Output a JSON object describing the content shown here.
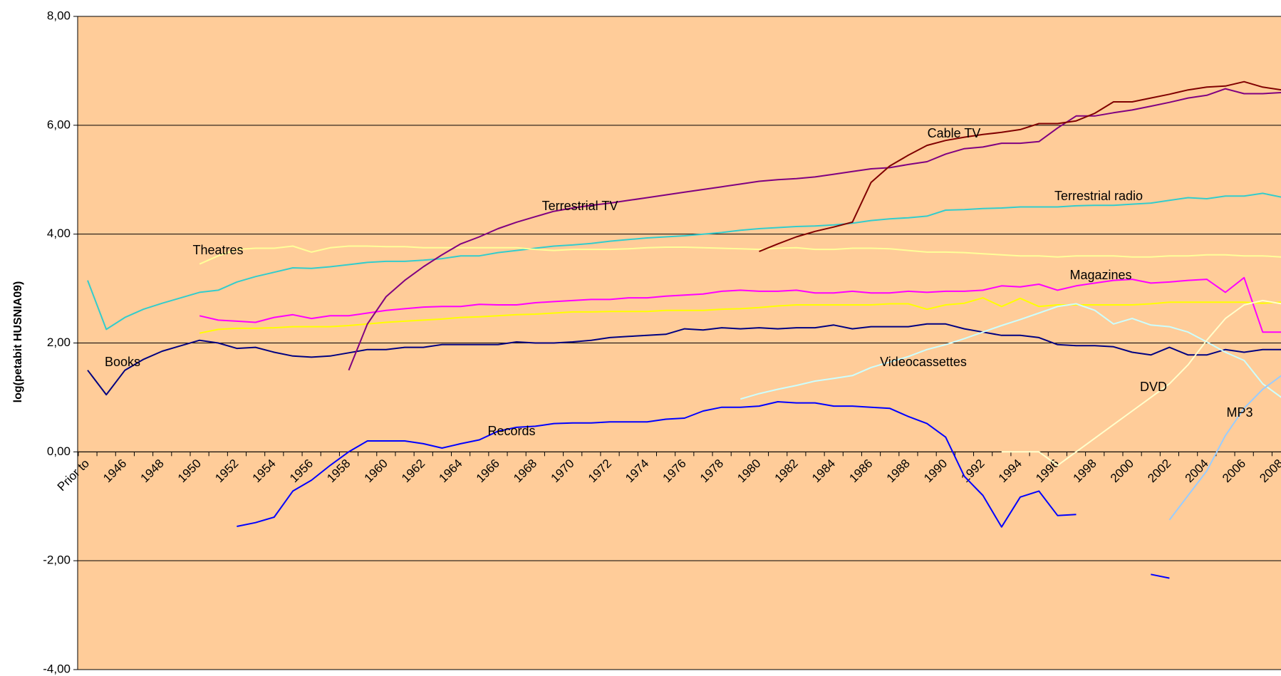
{
  "chart_data": {
    "type": "line",
    "ylabel": "log(petabit HUSNIA09)",
    "categories": [
      "Prior to",
      null,
      "1946",
      null,
      "1948",
      null,
      "1950",
      null,
      "1952",
      null,
      "1954",
      null,
      "1956",
      null,
      "1958",
      null,
      "1960",
      null,
      "1962",
      null,
      "1964",
      null,
      "1966",
      null,
      "1968",
      null,
      "1970",
      null,
      "1972",
      null,
      "1974",
      null,
      "1976",
      null,
      "1978",
      null,
      "1980",
      null,
      "1982",
      null,
      "1984",
      null,
      "1986",
      null,
      "1988",
      null,
      "1990",
      null,
      "1992",
      null,
      "1994",
      null,
      "1996",
      null,
      "1998",
      null,
      "2000",
      null,
      "2002",
      null,
      "2004",
      null,
      "2006",
      null,
      "2008"
    ],
    "ylim": [
      -4,
      8
    ],
    "yticks": [
      {
        "value": -4,
        "label": "-4,00"
      },
      {
        "value": -2,
        "label": "-2,00"
      },
      {
        "value": 0,
        "label": "0,00"
      },
      {
        "value": 2,
        "label": "2,00"
      },
      {
        "value": 4,
        "label": "4,00"
      },
      {
        "value": 6,
        "label": "6,00"
      },
      {
        "value": 8,
        "label": "8,00"
      }
    ],
    "grid": true,
    "background": "#ffcc99",
    "series": [
      {
        "name": "Books",
        "color": "#000080",
        "values": [
          1.5,
          1.05,
          1.5,
          1.7,
          1.85,
          1.95,
          2.05,
          2.0,
          1.9,
          1.92,
          1.83,
          1.76,
          1.74,
          1.76,
          1.82,
          1.88,
          1.88,
          1.92,
          1.92,
          1.97,
          1.97,
          1.97,
          1.97,
          2.02,
          2.0,
          2.0,
          2.02,
          2.05,
          2.1,
          2.12,
          2.14,
          2.16,
          2.26,
          2.24,
          2.28,
          2.26,
          2.28,
          2.26,
          2.28,
          2.28,
          2.33,
          2.26,
          2.3,
          2.3,
          2.3,
          2.35,
          2.35,
          2.26,
          2.2,
          2.14,
          2.14,
          2.1,
          1.97,
          1.95,
          1.95,
          1.93,
          1.83,
          1.78,
          1.92,
          1.78,
          1.78,
          1.88,
          1.83,
          1.88,
          1.88
        ]
      },
      {
        "name": "Terrestrial radio",
        "color": "#33cccc",
        "values": [
          3.15,
          2.25,
          2.47,
          2.62,
          2.73,
          2.83,
          2.93,
          2.97,
          3.12,
          3.22,
          3.3,
          3.38,
          3.37,
          3.4,
          3.44,
          3.48,
          3.5,
          3.5,
          3.52,
          3.55,
          3.6,
          3.6,
          3.66,
          3.7,
          3.74,
          3.78,
          3.8,
          3.83,
          3.87,
          3.9,
          3.93,
          3.95,
          3.97,
          4.0,
          4.03,
          4.07,
          4.1,
          4.12,
          4.14,
          4.15,
          4.17,
          4.2,
          4.25,
          4.28,
          4.3,
          4.33,
          4.44,
          4.45,
          4.47,
          4.48,
          4.5,
          4.5,
          4.5,
          4.52,
          4.53,
          4.53,
          4.55,
          4.57,
          4.62,
          4.67,
          4.65,
          4.7,
          4.7,
          4.75,
          4.68
        ]
      },
      {
        "name": "Theatres",
        "color": "#ffff99",
        "values": [
          null,
          null,
          null,
          null,
          null,
          null,
          3.45,
          3.6,
          3.72,
          3.74,
          3.74,
          3.78,
          3.67,
          3.75,
          3.78,
          3.78,
          3.77,
          3.77,
          3.75,
          3.75,
          3.75,
          3.75,
          3.75,
          3.75,
          3.72,
          3.7,
          3.72,
          3.72,
          3.72,
          3.73,
          3.75,
          3.76,
          3.76,
          3.75,
          3.74,
          3.73,
          3.72,
          3.74,
          3.75,
          3.72,
          3.72,
          3.74,
          3.74,
          3.73,
          3.7,
          3.67,
          3.67,
          3.66,
          3.64,
          3.62,
          3.6,
          3.6,
          3.58,
          3.6,
          3.6,
          3.6,
          3.58,
          3.58,
          3.6,
          3.6,
          3.62,
          3.62,
          3.6,
          3.6,
          3.58
        ]
      },
      {
        "color": "#ffff00",
        "values": [
          null,
          null,
          null,
          null,
          null,
          null,
          2.18,
          2.25,
          2.27,
          2.27,
          2.28,
          2.3,
          2.3,
          2.3,
          2.32,
          2.35,
          2.38,
          2.4,
          2.42,
          2.44,
          2.47,
          2.48,
          2.5,
          2.52,
          2.53,
          2.55,
          2.57,
          2.57,
          2.58,
          2.58,
          2.58,
          2.6,
          2.6,
          2.6,
          2.62,
          2.63,
          2.65,
          2.68,
          2.7,
          2.7,
          2.7,
          2.7,
          2.7,
          2.72,
          2.72,
          2.62,
          2.7,
          2.73,
          2.83,
          2.67,
          2.82,
          2.67,
          2.7,
          2.7,
          2.7,
          2.7,
          2.7,
          2.72,
          2.75,
          2.75,
          2.75,
          2.75,
          2.75,
          2.73,
          2.75
        ]
      },
      {
        "name": "Magazines",
        "color": "#ff00ff",
        "values": [
          null,
          null,
          null,
          null,
          null,
          null,
          2.5,
          2.42,
          2.4,
          2.38,
          2.47,
          2.52,
          2.45,
          2.5,
          2.5,
          2.55,
          2.6,
          2.63,
          2.66,
          2.67,
          2.67,
          2.71,
          2.7,
          2.7,
          2.74,
          2.76,
          2.78,
          2.8,
          2.8,
          2.83,
          2.83,
          2.86,
          2.88,
          2.9,
          2.95,
          2.97,
          2.95,
          2.95,
          2.97,
          2.92,
          2.92,
          2.95,
          2.92,
          2.92,
          2.95,
          2.93,
          2.95,
          2.95,
          2.97,
          3.05,
          3.03,
          3.08,
          2.97,
          3.05,
          3.1,
          3.15,
          3.17,
          3.1,
          3.12,
          3.15,
          3.17,
          2.93,
          3.2,
          2.2,
          2.2
        ]
      },
      {
        "name": "Terrestrial TV",
        "color": "#800080",
        "values": [
          null,
          null,
          null,
          null,
          null,
          null,
          null,
          null,
          null,
          null,
          null,
          null,
          null,
          null,
          1.5,
          2.35,
          2.85,
          3.15,
          3.4,
          3.62,
          3.82,
          3.95,
          4.1,
          4.22,
          4.32,
          4.42,
          4.48,
          4.53,
          4.57,
          4.62,
          4.67,
          4.72,
          4.77,
          4.82,
          4.87,
          4.92,
          4.97,
          5.0,
          5.02,
          5.05,
          5.1,
          5.15,
          5.2,
          5.22,
          5.28,
          5.33,
          5.47,
          5.57,
          5.6,
          5.67,
          5.67,
          5.7,
          5.95,
          6.17,
          6.17,
          6.23,
          6.28,
          6.35,
          6.42,
          6.5,
          6.55,
          6.67,
          6.58,
          6.58,
          6.6
        ]
      },
      {
        "name": "Cable TV",
        "color": "#800000",
        "values": [
          null,
          null,
          null,
          null,
          null,
          null,
          null,
          null,
          null,
          null,
          null,
          null,
          null,
          null,
          null,
          null,
          null,
          null,
          null,
          null,
          null,
          null,
          null,
          null,
          null,
          null,
          null,
          null,
          null,
          null,
          null,
          null,
          null,
          null,
          null,
          null,
          3.68,
          3.82,
          3.95,
          4.05,
          4.13,
          4.22,
          4.95,
          5.25,
          5.45,
          5.63,
          5.72,
          5.78,
          5.83,
          5.87,
          5.92,
          6.03,
          6.03,
          6.08,
          6.22,
          6.43,
          6.43,
          6.5,
          6.57,
          6.65,
          6.7,
          6.72,
          6.8,
          6.7,
          6.65
        ]
      },
      {
        "name": "Records",
        "color": "#0000ff",
        "values": [
          null,
          null,
          null,
          null,
          null,
          null,
          null,
          null,
          -1.37,
          -1.3,
          -1.2,
          -0.72,
          -0.52,
          -0.25,
          0,
          0.2,
          0.2,
          0.2,
          0.15,
          0.07,
          0.15,
          0.22,
          0.38,
          0.45,
          0.47,
          0.52,
          0.53,
          0.53,
          0.55,
          0.55,
          0.55,
          0.6,
          0.62,
          0.75,
          0.82,
          0.82,
          0.84,
          0.92,
          0.9,
          0.9,
          0.84,
          0.84,
          0.82,
          0.8,
          0.65,
          0.52,
          0.27,
          -0.45,
          -0.8,
          -1.38,
          -0.83,
          -0.72,
          -1.17,
          -1.15,
          null,
          null,
          null,
          -2.25,
          -2.32,
          null,
          null,
          null,
          null,
          null,
          null
        ]
      },
      {
        "name": "Videocassettes",
        "color": "#ccffff",
        "values": [
          null,
          null,
          null,
          null,
          null,
          null,
          null,
          null,
          null,
          null,
          null,
          null,
          null,
          null,
          null,
          null,
          null,
          null,
          null,
          null,
          null,
          null,
          null,
          null,
          null,
          null,
          null,
          null,
          null,
          null,
          null,
          null,
          null,
          null,
          null,
          0.97,
          1.07,
          1.15,
          1.22,
          1.3,
          1.35,
          1.4,
          1.55,
          1.65,
          1.75,
          1.88,
          1.97,
          2.08,
          2.2,
          2.32,
          2.43,
          2.55,
          2.67,
          2.72,
          2.6,
          2.35,
          2.45,
          2.33,
          2.3,
          2.2,
          2.02,
          1.83,
          1.68,
          1.25,
          1.0
        ]
      },
      {
        "name": "DVD",
        "color": "#ffffcc",
        "values": [
          null,
          null,
          null,
          null,
          null,
          null,
          null,
          null,
          null,
          null,
          null,
          null,
          null,
          null,
          null,
          null,
          null,
          null,
          null,
          null,
          null,
          null,
          null,
          null,
          null,
          null,
          null,
          null,
          null,
          null,
          null,
          null,
          null,
          null,
          null,
          null,
          null,
          null,
          null,
          null,
          null,
          null,
          null,
          null,
          null,
          null,
          null,
          null,
          null,
          0,
          0,
          0,
          -0.25,
          0,
          0.25,
          0.5,
          0.75,
          1.0,
          1.25,
          1.6,
          2.05,
          2.45,
          2.7,
          2.78,
          2.72
        ]
      },
      {
        "name": "MP3",
        "color": "#99ccff",
        "values": [
          null,
          null,
          null,
          null,
          null,
          null,
          null,
          null,
          null,
          null,
          null,
          null,
          null,
          null,
          null,
          null,
          null,
          null,
          null,
          null,
          null,
          null,
          null,
          null,
          null,
          null,
          null,
          null,
          null,
          null,
          null,
          null,
          null,
          null,
          null,
          null,
          null,
          null,
          null,
          null,
          null,
          null,
          null,
          null,
          null,
          null,
          null,
          null,
          null,
          null,
          null,
          null,
          null,
          null,
          null,
          null,
          null,
          null,
          -1.25,
          -0.8,
          -0.35,
          0.3,
          0.8,
          1.15,
          1.4
        ]
      }
    ]
  }
}
